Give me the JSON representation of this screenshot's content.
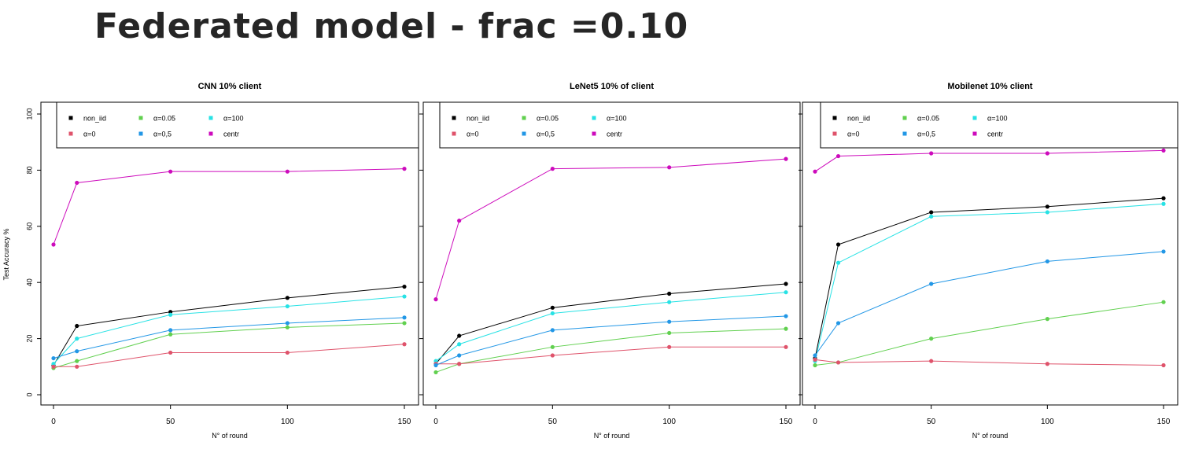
{
  "slide": {
    "title": "Federated model - frac =0.10"
  },
  "axes": {
    "xlabel": "N° of round",
    "ylabel": "Test Accuracy %",
    "x_ticks": [
      "0",
      "50",
      "100",
      "150"
    ],
    "y_ticks": [
      "0",
      "20",
      "40",
      "60",
      "80",
      "100"
    ],
    "xlim": [
      0,
      150
    ],
    "ylim": [
      0,
      100
    ]
  },
  "legend": {
    "placement": "top",
    "entries": [
      {
        "key": "non_iid",
        "label": "non_iid",
        "color": "#000000"
      },
      {
        "key": "a005",
        "label": "α=0.05",
        "color": "#61D04F"
      },
      {
        "key": "a100",
        "label": "α=100",
        "color": "#28E2E5"
      },
      {
        "key": "a0",
        "label": "α=0",
        "color": "#DF536B"
      },
      {
        "key": "a05",
        "label": "α=0,5",
        "color": "#2297E6"
      },
      {
        "key": "centr",
        "label": "centr",
        "color": "#CD0BBC"
      }
    ]
  },
  "chart_data": [
    {
      "type": "line",
      "title": "CNN 10% client",
      "x": [
        0,
        10,
        50,
        100,
        150
      ],
      "series": [
        {
          "name": "non_iid",
          "values": [
            10.5,
            24.5,
            29.5,
            34.5,
            38.5
          ]
        },
        {
          "name": "α=0.05",
          "values": [
            9.5,
            12,
            21.5,
            24,
            25.5
          ]
        },
        {
          "name": "α=100",
          "values": [
            11,
            20,
            28.5,
            31.5,
            35
          ]
        },
        {
          "name": "α=0",
          "values": [
            10,
            10,
            15,
            15,
            18
          ]
        },
        {
          "name": "α=0,5",
          "values": [
            13,
            15.5,
            23,
            25.5,
            27.5
          ]
        },
        {
          "name": "centr",
          "values": [
            53.5,
            75.5,
            79.5,
            79.5,
            80.5
          ]
        }
      ],
      "xlabel": "N° of round",
      "ylabel": "Test Accuracy %",
      "xlim": [
        0,
        150
      ],
      "ylim": [
        0,
        100
      ],
      "grid": false,
      "legend": "top"
    },
    {
      "type": "line",
      "title": "LeNet5 10% of client",
      "x": [
        0,
        10,
        50,
        100,
        150
      ],
      "series": [
        {
          "name": "non_iid",
          "values": [
            11,
            21,
            31,
            36,
            39.5
          ]
        },
        {
          "name": "α=0.05",
          "values": [
            8,
            11,
            17,
            22,
            23.5
          ]
        },
        {
          "name": "α=100",
          "values": [
            12,
            18,
            29,
            33,
            36.5
          ]
        },
        {
          "name": "α=0",
          "values": [
            11,
            11,
            14,
            17,
            17
          ]
        },
        {
          "name": "α=0,5",
          "values": [
            10.5,
            14,
            23,
            26,
            28
          ]
        },
        {
          "name": "centr",
          "values": [
            34,
            62,
            80.5,
            81,
            84
          ]
        }
      ],
      "xlabel": "N° of round",
      "ylabel": "",
      "xlim": [
        0,
        150
      ],
      "ylim": [
        0,
        100
      ],
      "grid": false,
      "legend": "top"
    },
    {
      "type": "line",
      "title": "Mobilenet 10% client",
      "x": [
        0,
        10,
        50,
        100,
        150
      ],
      "series": [
        {
          "name": "non_iid",
          "values": [
            13,
            53.5,
            65,
            67,
            70
          ]
        },
        {
          "name": "α=0.05",
          "values": [
            10.5,
            11.5,
            20,
            27,
            33
          ]
        },
        {
          "name": "α=100",
          "values": [
            12,
            47,
            63.5,
            65,
            68
          ]
        },
        {
          "name": "α=0",
          "values": [
            12.5,
            11.5,
            12,
            11,
            10.5
          ]
        },
        {
          "name": "α=0,5",
          "values": [
            14,
            25.5,
            39.5,
            47.5,
            51
          ]
        },
        {
          "name": "centr",
          "values": [
            79.5,
            85,
            86,
            86,
            87
          ]
        }
      ],
      "xlabel": "N° of round",
      "ylabel": "",
      "xlim": [
        0,
        150
      ],
      "ylim": [
        0,
        100
      ],
      "grid": false,
      "legend": "top"
    }
  ]
}
